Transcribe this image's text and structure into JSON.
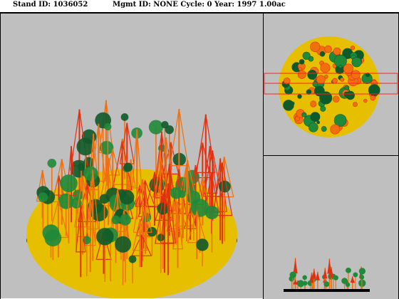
{
  "header": {
    "stand_id": "Stand ID: 1036052",
    "mgmt_info": "Mgmt ID: NONE Cycle: 0 Year: 1997 1.00ac"
  },
  "panes": {
    "perspective": "stand-perspective-view",
    "plan": "stand-plan-view",
    "profile": "stand-profile-view"
  },
  "colors": {
    "background": "#bfbfbf",
    "ground": "#e6c000",
    "conifer_orange": "#f07010",
    "conifer_red": "#e03010",
    "broadleaf_green": "#1f8a3a",
    "broadleaf_dark": "#0f5a2a",
    "selection_outline": "#ff2020"
  }
}
